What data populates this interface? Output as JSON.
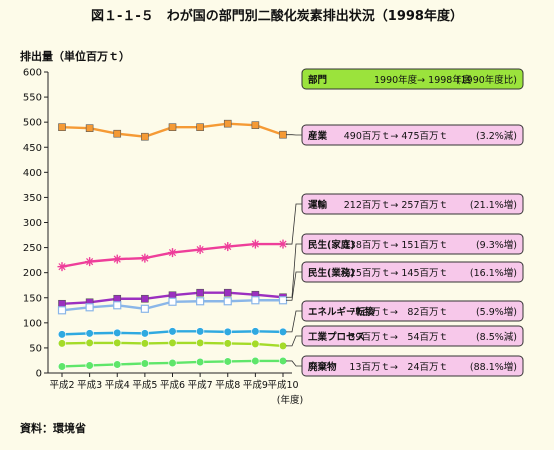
{
  "page": {
    "title": "図１-１-５　わが国の部門別二酸化炭素排出状況（1998年度）",
    "unit_label": "排出量（単位百万ｔ）",
    "source": "資料：環境省",
    "x_axis_note": "(年度)"
  },
  "header_box": {
    "sector": "部門",
    "change": "1990年度→ 1998年度",
    "ratio": "(1990年度比)"
  },
  "chart_data": {
    "type": "line",
    "title": "図１-１-５　わが国の部門別二酸化炭素排出状況（1998年度）",
    "ylabel": "排出量（単位百万ｔ）",
    "xlabel": "(年度)",
    "ylim": [
      0,
      600
    ],
    "yticks": [
      0,
      50,
      100,
      150,
      200,
      250,
      300,
      350,
      400,
      450,
      500,
      550,
      600
    ],
    "categories": [
      "平成2",
      "平成3",
      "平成4",
      "平成5",
      "平成6",
      "平成7",
      "平成8",
      "平成9",
      "平成10"
    ],
    "grid": false,
    "series": [
      {
        "name": "産業",
        "color": "#f59a35",
        "marker": "square-filled",
        "values": [
          490,
          488,
          477,
          471,
          490,
          490,
          497,
          494,
          475
        ],
        "label_values": "490百万ｔ→ 475百万ｔ",
        "label_change": "(3.2%減)"
      },
      {
        "name": "運輸",
        "color": "#ee3e9a",
        "marker": "star",
        "values": [
          212,
          222,
          227,
          229,
          240,
          246,
          252,
          257,
          257
        ],
        "label_values": "212百万ｔ→ 257百万ｔ",
        "label_change": "(21.1%増)"
      },
      {
        "name": "民生(家庭)",
        "color": "#9b2fc0",
        "marker": "square-filled",
        "values": [
          138,
          141,
          148,
          148,
          155,
          160,
          160,
          156,
          151
        ],
        "label_values": "138百万ｔ→ 151百万ｔ",
        "label_change": "(9.3%増)"
      },
      {
        "name": "民生(業務)",
        "color": "#8ab6e8",
        "marker": "square-open",
        "values": [
          125,
          131,
          135,
          128,
          142,
          143,
          143,
          145,
          145
        ],
        "label_values": "125百万ｔ→ 145百万ｔ",
        "label_change": "(16.1%増)"
      },
      {
        "name": "エネルギー転換",
        "color": "#2fa9e0",
        "marker": "circle",
        "values": [
          77,
          79,
          80,
          79,
          83,
          83,
          82,
          83,
          82
        ],
        "label_values": "77百万ｔ→　82百万ｔ",
        "label_change": "(5.9%増)"
      },
      {
        "name": "工業プロセス",
        "color": "#a4db29",
        "marker": "circle",
        "values": [
          59,
          60,
          60,
          59,
          60,
          60,
          59,
          58,
          54
        ],
        "label_values": "59百万ｔ→　54百万ｔ",
        "label_change": "(8.5%減)"
      },
      {
        "name": "廃棄物",
        "color": "#5fe66a",
        "marker": "circle",
        "values": [
          13,
          15,
          17,
          19,
          20,
          22,
          23,
          24,
          24
        ],
        "label_values": "13百万ｔ→　24百万ｔ",
        "label_change": "(88.1%増)"
      }
    ]
  }
}
